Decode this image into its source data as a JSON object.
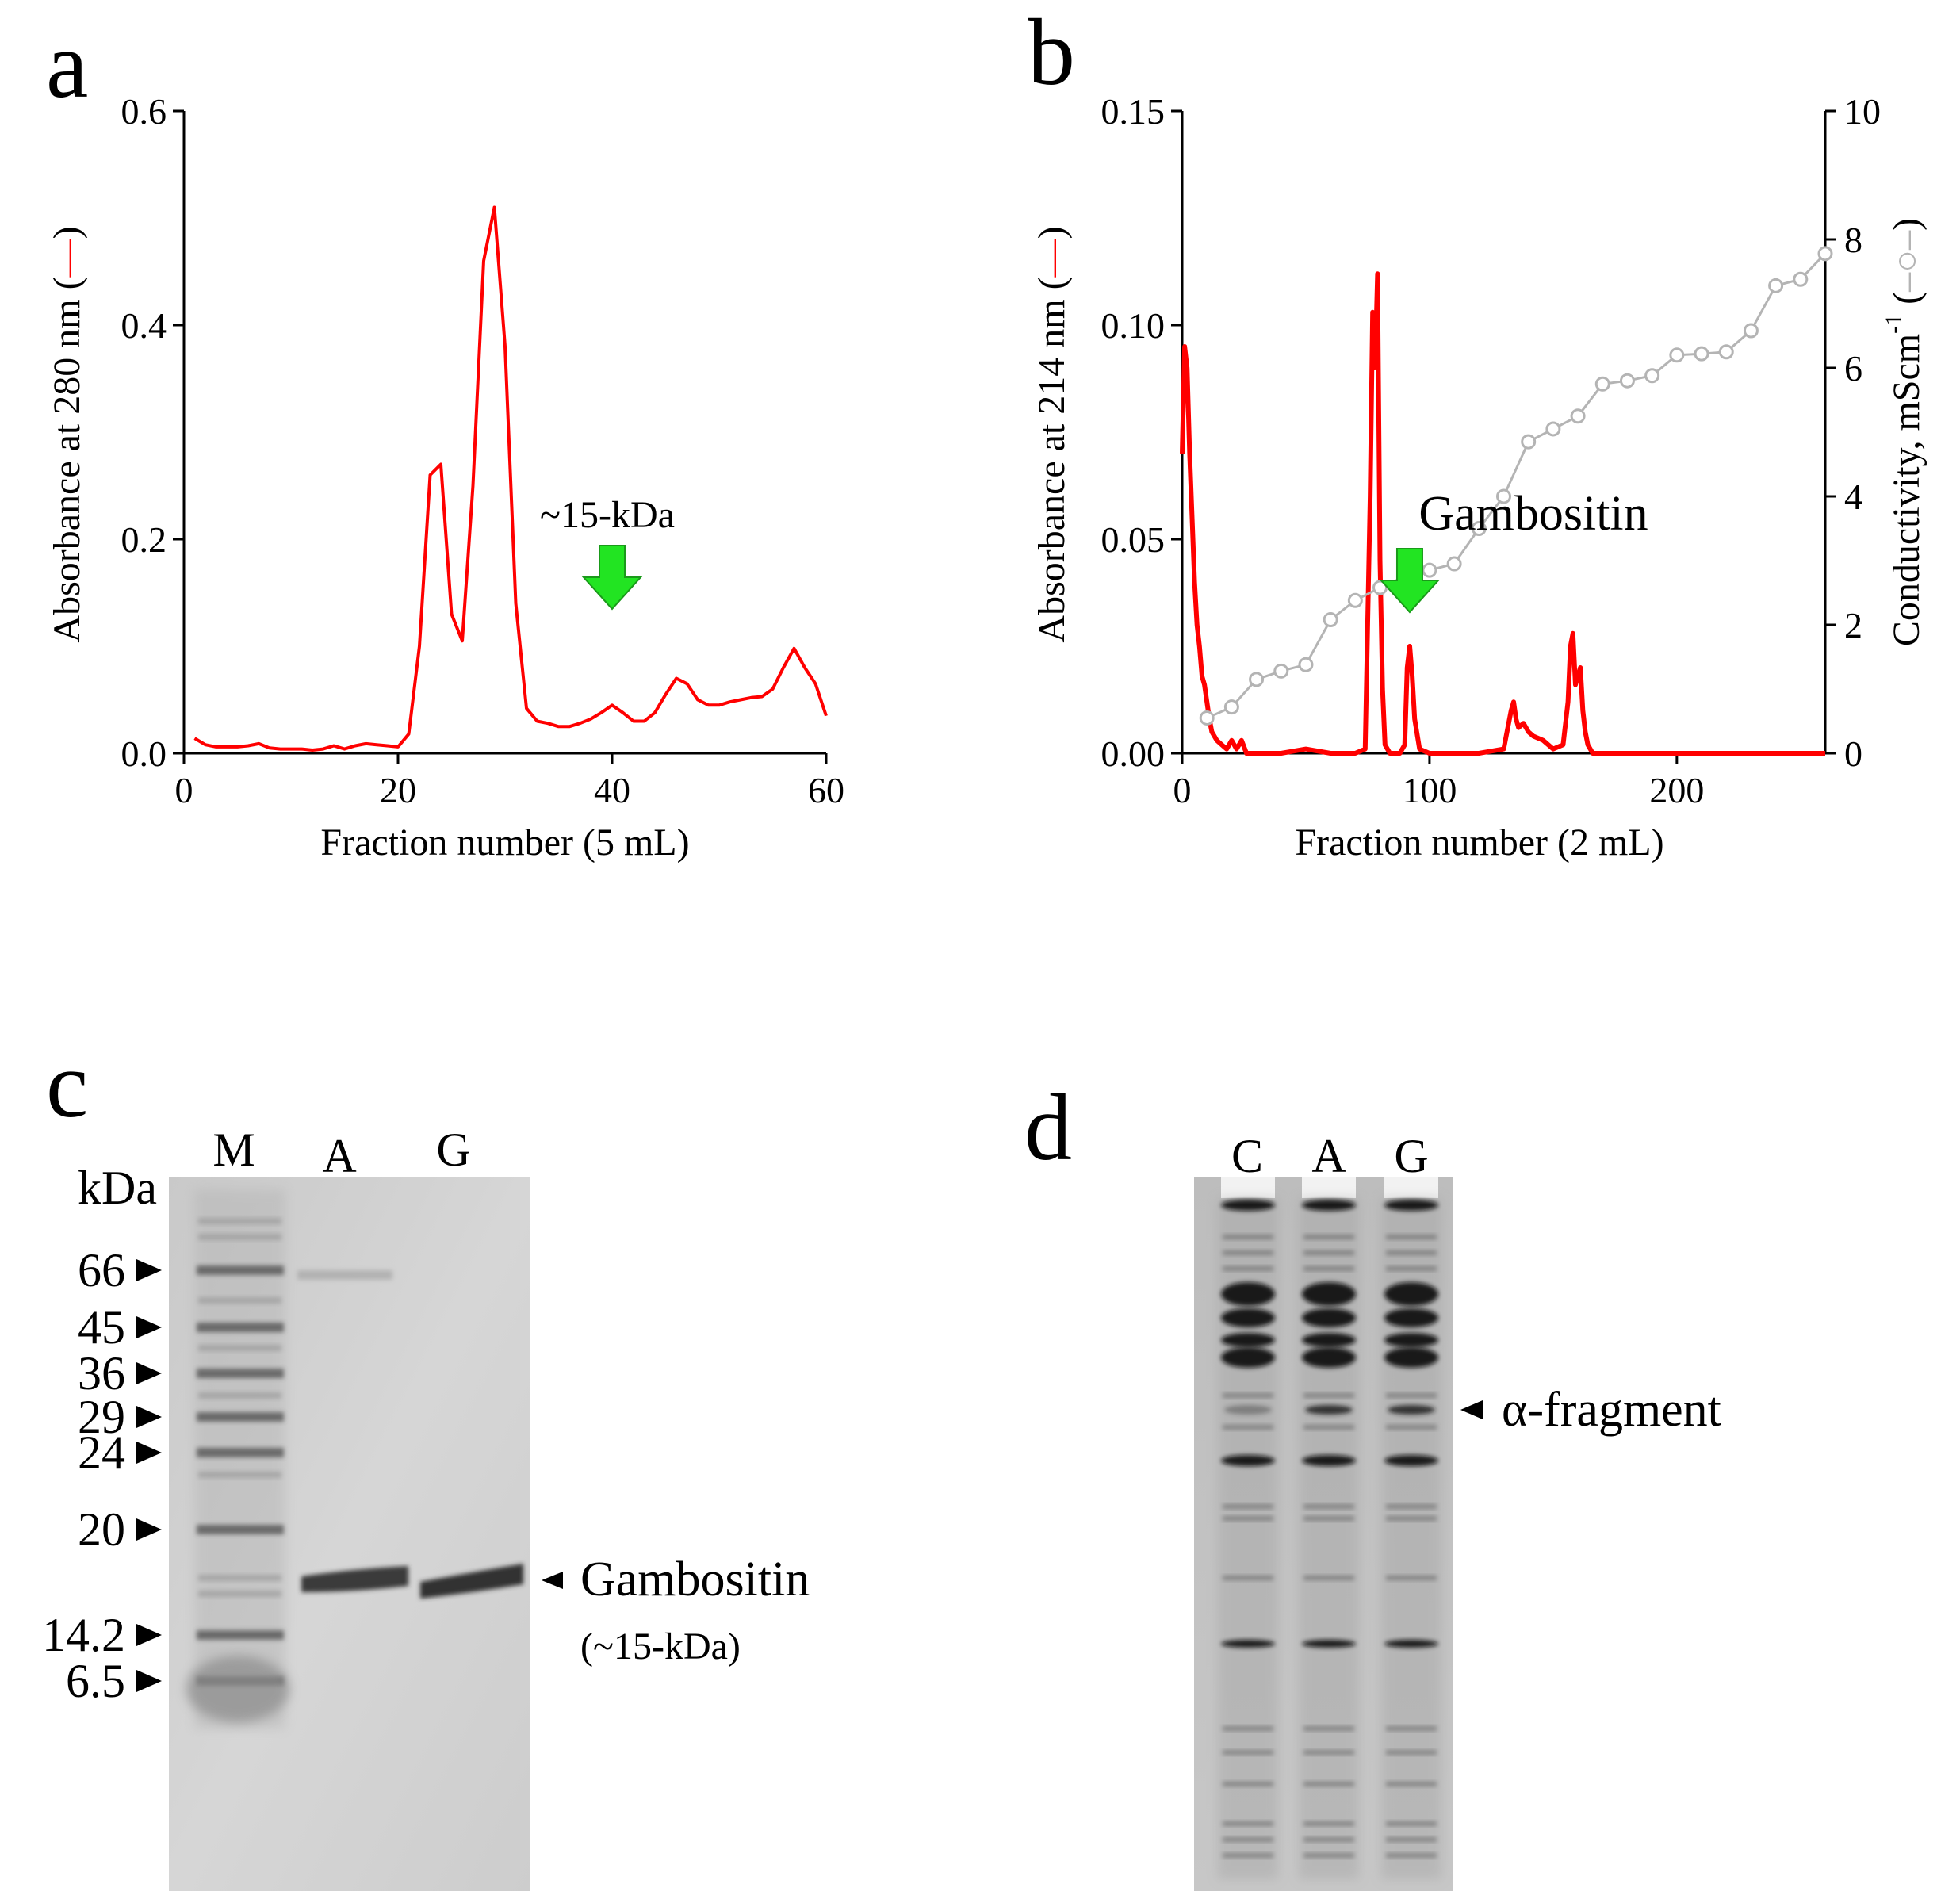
{
  "panels": {
    "a": "a",
    "b": "b",
    "c": "c",
    "d": "d"
  },
  "colors": {
    "absorbance": "#ff0000",
    "conductivity": "#b4b4b4",
    "arrow": "#22e422"
  },
  "chart_data": [
    {
      "type": "line",
      "panel": "a",
      "xlabel": "Fraction number (5 mL)",
      "ylabel": "Absorbance at 280 nm",
      "xlim": [
        0,
        60
      ],
      "ylim": [
        0,
        0.6
      ],
      "xticks": [
        "0",
        "20",
        "40",
        "60"
      ],
      "yticks": [
        "0.0",
        "0.2",
        "0.4",
        "0.6"
      ],
      "annotation": "~15-kDa",
      "arrow_x": 40,
      "series": [
        {
          "x": [
            1,
            2,
            3,
            4,
            5,
            6,
            7,
            8,
            9,
            10,
            11,
            12,
            13,
            14,
            15,
            16,
            17,
            18,
            19,
            20,
            21,
            22,
            23,
            24,
            25,
            26,
            27,
            28,
            29,
            30,
            31,
            32,
            33,
            34,
            35,
            36,
            37,
            38,
            39,
            40,
            41,
            42,
            43,
            44,
            45,
            46,
            47,
            48,
            49,
            50,
            51,
            52,
            53,
            54,
            55,
            56,
            57,
            58,
            59,
            60
          ],
          "values": [
            0.014,
            0.008,
            0.006,
            0.006,
            0.006,
            0.007,
            0.009,
            0.005,
            0.004,
            0.004,
            0.004,
            0.003,
            0.004,
            0.007,
            0.004,
            0.007,
            0.009,
            0.008,
            0.007,
            0.006,
            0.018,
            0.1,
            0.26,
            0.27,
            0.13,
            0.105,
            0.25,
            0.46,
            0.51,
            0.38,
            0.14,
            0.042,
            0.03,
            0.028,
            0.025,
            0.025,
            0.028,
            0.032,
            0.038,
            0.045,
            0.038,
            0.03,
            0.03,
            0.038,
            0.055,
            0.07,
            0.065,
            0.05,
            0.045,
            0.045,
            0.048,
            0.05,
            0.052,
            0.053,
            0.06,
            0.08,
            0.098,
            0.08,
            0.065,
            0.035
          ]
        }
      ]
    },
    {
      "type": "line",
      "panel": "b",
      "xlabel": "Fraction number (2 mL)",
      "ylabel": "Absorbance at 214 nm",
      "y2label": "Conductivity, mScm",
      "y2label_sup": "-1",
      "xlim": [
        0,
        260
      ],
      "ylim": [
        0,
        0.15
      ],
      "y2lim": [
        0,
        10
      ],
      "xticks": [
        "0",
        "100",
        "200"
      ],
      "yticks": [
        "0.00",
        "0.05",
        "0.10",
        "0.15"
      ],
      "y2ticks": [
        "0",
        "2",
        "4",
        "6",
        "8",
        "10"
      ],
      "annotation": "Gambositin",
      "arrow_x": 92,
      "series": [
        {
          "axis": "left",
          "x": [
            0,
            1,
            2,
            3,
            4,
            5,
            6,
            7,
            8,
            9,
            10,
            11,
            12,
            14,
            16,
            18,
            20,
            22,
            24,
            26,
            30,
            40,
            50,
            60,
            70,
            74,
            76,
            77,
            78,
            79,
            80,
            81,
            82,
            84,
            88,
            90,
            91,
            92,
            93,
            94,
            96,
            100,
            120,
            130,
            133,
            134,
            135,
            136,
            138,
            140,
            142,
            146,
            150,
            154,
            156,
            157,
            158,
            159,
            160,
            161,
            162,
            163,
            164,
            166,
            170,
            200,
            260
          ],
          "values": [
            0.07,
            0.095,
            0.09,
            0.07,
            0.055,
            0.04,
            0.03,
            0.025,
            0.018,
            0.016,
            0.012,
            0.008,
            0.005,
            0.003,
            0.002,
            0.001,
            0.003,
            0.001,
            0.003,
            0.0,
            0.0,
            0.0,
            0.001,
            0.0,
            0.0,
            0.001,
            0.06,
            0.103,
            0.09,
            0.112,
            0.045,
            0.015,
            0.002,
            0.0,
            0.0,
            0.002,
            0.02,
            0.025,
            0.018,
            0.008,
            0.001,
            0.0,
            0.0,
            0.001,
            0.01,
            0.012,
            0.008,
            0.006,
            0.007,
            0.005,
            0.004,
            0.003,
            0.001,
            0.002,
            0.012,
            0.025,
            0.028,
            0.016,
            0.018,
            0.02,
            0.01,
            0.005,
            0.002,
            0.0,
            0.0,
            0.0,
            0.0
          ]
        },
        {
          "axis": "right",
          "x": [
            10,
            20,
            30,
            40,
            50,
            60,
            70,
            80,
            90,
            100,
            110,
            120,
            130,
            140,
            150,
            160,
            170,
            180,
            190,
            200,
            210,
            220,
            230,
            240,
            250,
            260
          ],
          "values": [
            0.55,
            0.72,
            1.15,
            1.28,
            1.38,
            2.08,
            2.38,
            2.58,
            2.75,
            2.85,
            2.95,
            3.5,
            4.0,
            4.85,
            5.05,
            5.25,
            5.75,
            5.8,
            5.88,
            6.2,
            6.22,
            6.25,
            6.58,
            7.28,
            7.38,
            7.78
          ]
        }
      ]
    }
  ],
  "gel_c": {
    "kda_label": "kDa",
    "lanes": [
      "M",
      "A",
      "G"
    ],
    "markers": [
      "66",
      "45",
      "36",
      "29",
      "24",
      "20",
      "14.2",
      "6.5"
    ],
    "band_label": "Gambositin",
    "band_sublabel": "(~15-kDa)"
  },
  "gel_d": {
    "lanes": [
      "C",
      "A",
      "G"
    ],
    "band_label": "α-fragment"
  }
}
